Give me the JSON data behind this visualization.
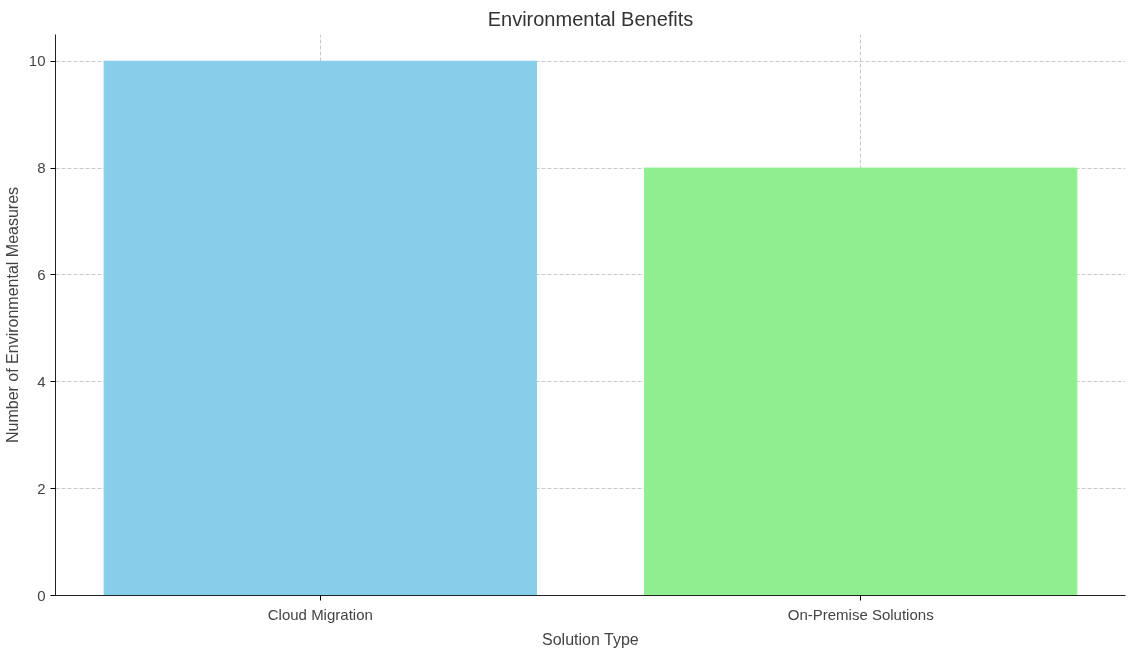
{
  "chart_data": {
    "type": "bar",
    "title": "Environmental Benefits",
    "xlabel": "Solution Type",
    "ylabel": "Number of Environmental Measures",
    "categories": [
      "Cloud Migration",
      "On-Premise Solutions"
    ],
    "values": [
      10,
      8
    ],
    "colors": [
      "#87ceeb",
      "#90ee90"
    ],
    "ylim": [
      0,
      10.5
    ],
    "yticks": [
      0,
      2,
      4,
      6,
      8,
      10
    ],
    "grid": true
  }
}
